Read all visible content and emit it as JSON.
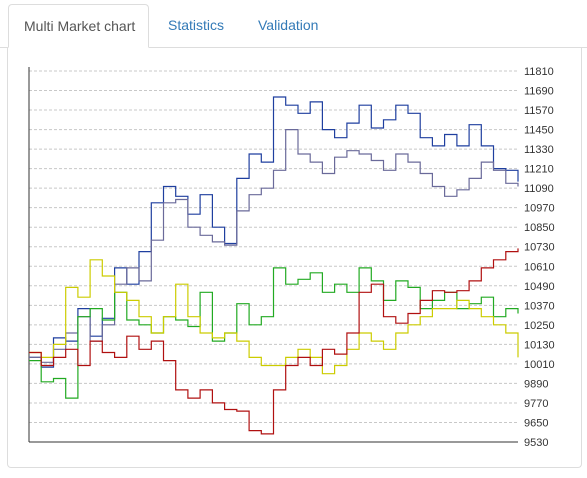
{
  "tabs": [
    {
      "label": "Multi Market chart",
      "active": true
    },
    {
      "label": "Statistics",
      "active": false
    },
    {
      "label": "Validation",
      "active": false
    }
  ],
  "colors": {
    "tab_link": "#337ab7",
    "tab_active_text": "#555555",
    "border": "#dddddd",
    "gridline": "#c8c8c8",
    "axis": "#333333"
  },
  "chart_data": {
    "type": "line",
    "title": "",
    "xlabel": "",
    "ylabel": "",
    "ylim": [
      9530,
      11810
    ],
    "y_ticks": [
      11810,
      11690,
      11570,
      11450,
      11330,
      11210,
      11090,
      10970,
      10850,
      10730,
      10610,
      10490,
      10370,
      10250,
      10130,
      10010,
      9890,
      9770,
      9650,
      9530
    ],
    "y_axis_position": "right",
    "grid": "horizontal dashed",
    "legend": "none",
    "x": [
      0,
      6,
      12,
      18,
      24,
      30,
      36,
      42,
      48,
      54,
      60,
      66,
      72,
      78,
      84,
      90,
      96,
      102,
      108,
      114,
      120,
      126,
      132,
      138,
      144,
      150,
      156,
      162,
      168,
      174,
      180,
      186,
      192,
      198,
      204,
      210,
      216,
      222,
      228,
      234,
      240
    ],
    "series": [
      {
        "color": "#1f3f9f",
        "values": [
          10050,
          9990,
          10170,
          10150,
          10350,
          10180,
          10290,
          10600,
          10500,
          10700,
          11000,
          11100,
          11040,
          10930,
          11050,
          10850,
          10750,
          11150,
          11300,
          11250,
          11650,
          11600,
          11550,
          11620,
          11450,
          11400,
          11490,
          11600,
          11460,
          11510,
          11600,
          11550,
          11400,
          11350,
          11420,
          11350,
          11480,
          11350,
          11210,
          11200,
          11130
        ]
      },
      {
        "color": "#6a6a9a",
        "values": [
          10050,
          10020,
          10100,
          10200,
          10300,
          10150,
          10250,
          10500,
          10600,
          10520,
          10770,
          11000,
          11020,
          10850,
          10800,
          10760,
          10740,
          10950,
          11050,
          11090,
          11200,
          11450,
          11300,
          11250,
          11180,
          11280,
          11320,
          11300,
          11260,
          11200,
          11300,
          11250,
          11180,
          11100,
          11040,
          11080,
          11150,
          11250,
          11200,
          11120,
          11100
        ]
      },
      {
        "color": "#22aa22",
        "values": [
          10030,
          9900,
          9920,
          9800,
          10300,
          10350,
          10280,
          10450,
          10280,
          10250,
          10200,
          10300,
          10280,
          10240,
          10450,
          10150,
          10200,
          10380,
          10250,
          10300,
          10600,
          10500,
          10530,
          10570,
          10450,
          10500,
          10450,
          10600,
          10520,
          10400,
          10520,
          10480,
          10350,
          10400,
          10450,
          10350,
          10380,
          10420,
          10300,
          10350,
          10320
        ]
      },
      {
        "color": "#cccc00",
        "values": [
          10080,
          10050,
          10130,
          10480,
          10420,
          10650,
          10550,
          10450,
          10400,
          10300,
          10200,
          10300,
          10500,
          10300,
          10200,
          10170,
          10200,
          10150,
          10050,
          10000,
          10000,
          10050,
          10100,
          10050,
          9950,
          10000,
          10100,
          10200,
          10150,
          10100,
          10200,
          10250,
          10300,
          10350,
          10350,
          10400,
          10350,
          10300,
          10250,
          10200,
          10050
        ]
      },
      {
        "color": "#b01010",
        "values": [
          10080,
          10000,
          10050,
          10100,
          10000,
          10150,
          10080,
          10050,
          10180,
          10100,
          10150,
          10030,
          9850,
          9800,
          9850,
          9770,
          9730,
          9720,
          9600,
          9580,
          9850,
          10000,
          10050,
          10000,
          10100,
          10070,
          10200,
          10450,
          10500,
          10300,
          10260,
          10320,
          10400,
          10460,
          10450,
          10460,
          10520,
          10600,
          10650,
          10700,
          10720
        ]
      }
    ]
  }
}
